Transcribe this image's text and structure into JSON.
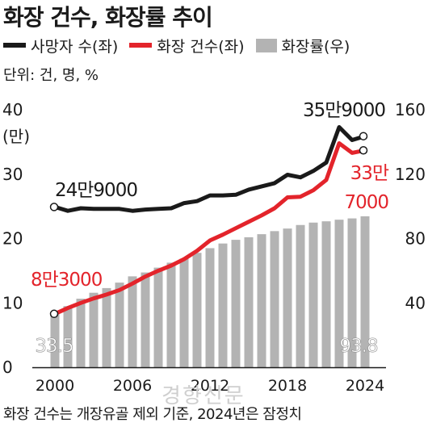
{
  "title": "화장 건수, 화장률 추이",
  "legend": [
    {
      "label": "사망자 수(좌)",
      "color": "#1a1a1a",
      "kind": "line"
    },
    {
      "label": "화장 건수(좌)",
      "color": "#e3242b",
      "kind": "line"
    },
    {
      "label": "화장률(우)",
      "color": "#b3b3b3",
      "kind": "bar"
    }
  ],
  "unit_note": "단위: 건, 명, %",
  "footnote": "화장 건수는 개장유골 제외 기준, 2024년은 잠정치",
  "watermark": "경향신문",
  "chart_data": {
    "type": "bar",
    "x": [
      2000,
      2001,
      2002,
      2003,
      2004,
      2005,
      2006,
      2007,
      2008,
      2009,
      2010,
      2011,
      2012,
      2013,
      2014,
      2015,
      2016,
      2017,
      2018,
      2019,
      2020,
      2021,
      2022,
      2023,
      2024
    ],
    "x_tick_labels": [
      "2000",
      "2006",
      "2012",
      "2018",
      "2024"
    ],
    "left_axis": {
      "label": "(만)",
      "ticks": [
        "0",
        "10",
        "20",
        "30",
        "40"
      ],
      "ylim": [
        0,
        40
      ]
    },
    "right_axis": {
      "ticks": [
        "40",
        "80",
        "120",
        "160"
      ],
      "ylim": [
        0,
        160
      ]
    },
    "series": [
      {
        "name": "사망자 수(좌)",
        "axis": "left",
        "kind": "line",
        "color": "#1a1a1a",
        "values": [
          24.9,
          24.3,
          24.7,
          24.6,
          24.6,
          24.6,
          24.3,
          24.5,
          24.6,
          24.7,
          25.5,
          25.8,
          26.7,
          26.7,
          26.8,
          27.6,
          28.1,
          28.6,
          29.9,
          29.5,
          30.5,
          31.8,
          37.3,
          35.3,
          35.9
        ]
      },
      {
        "name": "화장 건수(좌)",
        "axis": "left",
        "kind": "line",
        "color": "#e3242b",
        "values": [
          8.3,
          9.2,
          10.0,
          10.7,
          11.3,
          12.0,
          13.0,
          14.1,
          15.0,
          15.8,
          16.8,
          18.1,
          19.7,
          20.6,
          21.6,
          22.6,
          23.6,
          24.7,
          26.4,
          26.5,
          27.5,
          29.1,
          34.8,
          33.3,
          33.7
        ]
      },
      {
        "name": "화장률(우)",
        "axis": "right",
        "kind": "bar",
        "color": "#b3b3b3",
        "values": [
          33.5,
          38.0,
          42.6,
          46.3,
          49.2,
          52.6,
          56.5,
          58.9,
          61.9,
          65.0,
          67.5,
          71.1,
          74.0,
          76.9,
          79.2,
          80.8,
          82.7,
          84.6,
          86.2,
          88.4,
          89.9,
          90.7,
          91.7,
          92.5,
          93.8
        ]
      }
    ],
    "annotations": {
      "death_first": "24만9000",
      "death_last": "35만9000",
      "crem_first": "8만3000",
      "crem_last_line1": "33만",
      "crem_last_line2": "7000",
      "rate_first": "33.5",
      "rate_last": "93.8"
    },
    "grid": false
  }
}
